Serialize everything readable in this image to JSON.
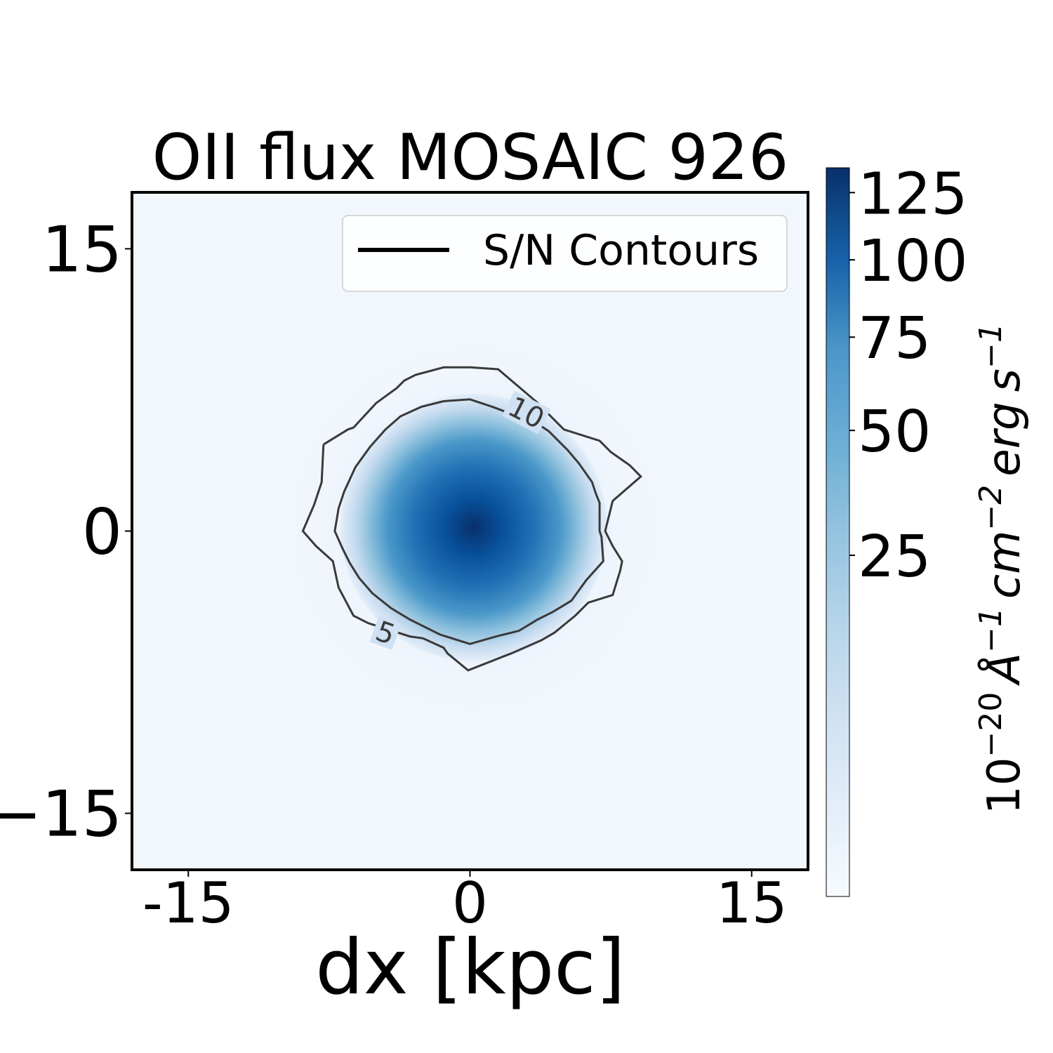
{
  "chart_data": {
    "type": "heatmap",
    "title": "OII flux MOSAIC 926",
    "xlabel": "dx [kpc]",
    "ylabel": "",
    "xlim": [
      -18,
      18
    ],
    "ylim": [
      -18,
      18
    ],
    "x_ticks": [
      {
        "value": -15,
        "label": "-15"
      },
      {
        "value": 0,
        "label": "0"
      },
      {
        "value": 15,
        "label": "15"
      }
    ],
    "y_ticks": [
      {
        "value": 15,
        "label": "15"
      },
      {
        "value": 0,
        "label": "0"
      },
      {
        "value": -15,
        "label": "−15"
      }
    ],
    "colorbar": {
      "label_parts": {
        "base": "10",
        "exp_base": "−20",
        "angstrom": "Å",
        "exp_angstrom": "−1",
        "cm": "cm",
        "exp_cm": "−2",
        "erg": "erg",
        "s": "s",
        "exp_s": "−1"
      },
      "range": [
        0,
        135
      ],
      "scale": "power",
      "colormap": "Blues",
      "ticks": [
        {
          "value": 25,
          "label": "25"
        },
        {
          "value": 50,
          "label": "50"
        },
        {
          "value": 75,
          "label": "75"
        },
        {
          "value": 100,
          "label": "100"
        },
        {
          "value": 125,
          "label": "125"
        }
      ]
    },
    "peak": {
      "x": 0.2,
      "y": 0.2,
      "value": 135
    },
    "contours": [
      {
        "level": 5,
        "label": "5",
        "points": [
          [
            -7.8,
            4.6
          ],
          [
            -7.9,
            2.6
          ],
          [
            -8.3,
            1.4
          ],
          [
            -8.9,
            0
          ],
          [
            -8.2,
            -0.8
          ],
          [
            -7.3,
            -1.6
          ],
          [
            -7,
            -3
          ],
          [
            -6.2,
            -4.5
          ],
          [
            -5.4,
            -4.9
          ],
          [
            -3.2,
            -5.6
          ],
          [
            -2.5,
            -5.7
          ],
          [
            -1.4,
            -6.2
          ],
          [
            -1.2,
            -6.5
          ],
          [
            -0.1,
            -7.4
          ],
          [
            2.2,
            -6.5
          ],
          [
            3.8,
            -5.8
          ],
          [
            4.5,
            -5.4
          ],
          [
            5.6,
            -4.5
          ],
          [
            6.3,
            -3.8
          ],
          [
            7.6,
            -3.4
          ],
          [
            8,
            -2.1
          ],
          [
            8.1,
            -1.6
          ],
          [
            7.6,
            -0.8
          ],
          [
            7.2,
            0
          ],
          [
            7.5,
            1.2
          ],
          [
            7.6,
            1.6
          ],
          [
            9.1,
            2.9
          ],
          [
            8.5,
            3.5
          ],
          [
            7.5,
            4.2
          ],
          [
            6.9,
            4.8
          ],
          [
            5,
            5.4
          ],
          [
            4.4,
            6
          ],
          [
            3.5,
            6.9
          ],
          [
            1.5,
            8.6
          ],
          [
            0,
            8.7
          ],
          [
            -1.4,
            8.7
          ],
          [
            -2.9,
            8.3
          ],
          [
            -3.5,
            8
          ],
          [
            -3.9,
            7.6
          ],
          [
            -5,
            6.8
          ],
          [
            -6.2,
            5.5
          ],
          [
            -6.5,
            5.4
          ],
          [
            -7.8,
            4.6
          ]
        ]
      },
      {
        "level": 10,
        "label": "10",
        "points": [
          [
            -1.4,
            6.9
          ],
          [
            0,
            7
          ],
          [
            1.2,
            6.6
          ],
          [
            3.6,
            5.7
          ],
          [
            4.2,
            5.3
          ],
          [
            5.2,
            4.3
          ],
          [
            5.8,
            3.6
          ],
          [
            6.5,
            2.6
          ],
          [
            6.7,
            2
          ],
          [
            6.9,
            1.5
          ],
          [
            6.9,
            1
          ],
          [
            6.9,
            0
          ],
          [
            7,
            -0.3
          ],
          [
            7.1,
            -1.6
          ],
          [
            6.2,
            -2.6
          ],
          [
            5.4,
            -3.7
          ],
          [
            4.4,
            -4.3
          ],
          [
            3.6,
            -4.7
          ],
          [
            2.6,
            -5.3
          ],
          [
            1.4,
            -5.6
          ],
          [
            0,
            -6
          ],
          [
            -1.6,
            -5.5
          ],
          [
            -3.2,
            -4.7
          ],
          [
            -4.2,
            -4.1
          ],
          [
            -5.2,
            -3.3
          ],
          [
            -5.9,
            -2.5
          ],
          [
            -6.4,
            -1.7
          ],
          [
            -6.8,
            -0.9
          ],
          [
            -7.2,
            0
          ],
          [
            -7,
            1.2
          ],
          [
            -6.7,
            2.1
          ],
          [
            -6.1,
            3.4
          ],
          [
            -5.3,
            4.5
          ],
          [
            -4.5,
            5.4
          ],
          [
            -3.7,
            6.1
          ],
          [
            -2.6,
            6.6
          ],
          [
            -1.4,
            6.9
          ]
        ]
      }
    ],
    "contour_label_positions": [
      {
        "label": "10",
        "x": 3.0,
        "y": 6.3,
        "angle": 27
      },
      {
        "label": "5",
        "x": -4.5,
        "y": -5.4,
        "angle": 20
      }
    ],
    "legend": {
      "entries": [
        "S/N Contours"
      ],
      "position": "top-right"
    }
  }
}
